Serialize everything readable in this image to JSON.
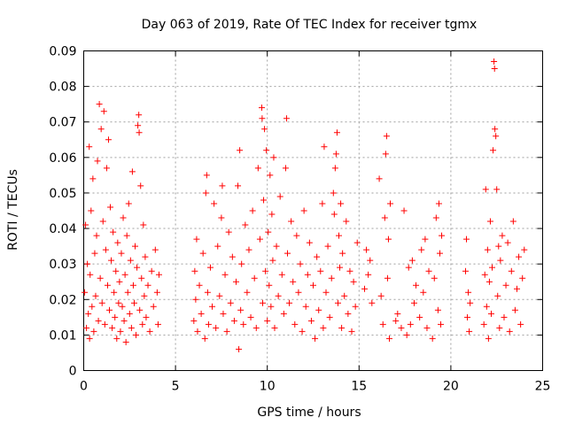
{
  "chart_data": {
    "type": "scatter",
    "title": "Day 063 of 2019, Rate Of TEC Index for receiver tgmx",
    "xlabel": "GPS time / hours",
    "ylabel": "ROTI / TECUs",
    "xlim": [
      0,
      25
    ],
    "ylim": [
      0,
      0.09
    ],
    "x_ticks": [
      0,
      5,
      10,
      15,
      20,
      25
    ],
    "x_tick_labels": [
      "0",
      "5",
      "10",
      "15",
      "20",
      "25"
    ],
    "y_ticks": [
      0,
      0.01,
      0.02,
      0.03,
      0.04,
      0.05,
      0.06,
      0.07,
      0.08,
      0.09
    ],
    "y_tick_labels": [
      "0",
      "0.01",
      "0.02",
      "0.03",
      "0.04",
      "0.05",
      "0.06",
      "0.07",
      "0.08",
      "0.09"
    ],
    "grid": true,
    "marker": "plus",
    "series_color": "#ff0000",
    "series": [
      {
        "points": [
          [
            0.05,
            0.022
          ],
          [
            0.1,
            0.041
          ],
          [
            0.15,
            0.012
          ],
          [
            0.2,
            0.03
          ],
          [
            0.25,
            0.016
          ],
          [
            0.3,
            0.063
          ],
          [
            0.32,
            0.009
          ],
          [
            0.35,
            0.027
          ],
          [
            0.4,
            0.045
          ],
          [
            0.45,
            0.018
          ],
          [
            0.5,
            0.054
          ],
          [
            0.55,
            0.011
          ],
          [
            0.6,
            0.033
          ],
          [
            0.65,
            0.021
          ],
          [
            0.7,
            0.038
          ],
          [
            0.75,
            0.059
          ],
          [
            0.8,
            0.014
          ],
          [
            0.85,
            0.075
          ],
          [
            0.9,
            0.026
          ],
          [
            0.95,
            0.068
          ],
          [
            1.0,
            0.019
          ],
          [
            1.05,
            0.042
          ],
          [
            1.1,
            0.073
          ],
          [
            1.15,
            0.013
          ],
          [
            1.2,
            0.034
          ],
          [
            1.25,
            0.057
          ],
          [
            1.3,
            0.024
          ],
          [
            1.35,
            0.065
          ],
          [
            1.4,
            0.017
          ],
          [
            1.45,
            0.046
          ],
          [
            1.5,
            0.031
          ],
          [
            1.55,
            0.012
          ],
          [
            1.6,
            0.039
          ],
          [
            1.65,
            0.022
          ],
          [
            1.7,
            0.015
          ],
          [
            1.75,
            0.028
          ],
          [
            1.8,
            0.009
          ],
          [
            1.85,
            0.036
          ],
          [
            1.9,
            0.019
          ],
          [
            1.95,
            0.025
          ],
          [
            2.0,
            0.011
          ],
          [
            2.05,
            0.033
          ],
          [
            2.1,
            0.018
          ],
          [
            2.15,
            0.043
          ],
          [
            2.2,
            0.014
          ],
          [
            2.25,
            0.027
          ],
          [
            2.3,
            0.008
          ],
          [
            2.35,
            0.038
          ],
          [
            2.4,
            0.022
          ],
          [
            2.45,
            0.047
          ],
          [
            2.5,
            0.016
          ],
          [
            2.55,
            0.031
          ],
          [
            2.6,
            0.012
          ],
          [
            2.65,
            0.056
          ],
          [
            2.7,
            0.024
          ],
          [
            2.75,
            0.019
          ],
          [
            2.8,
            0.035
          ],
          [
            2.85,
            0.01
          ],
          [
            2.9,
            0.029
          ],
          [
            2.95,
            0.069
          ],
          [
            3.0,
            0.072
          ],
          [
            3.02,
            0.067
          ],
          [
            3.05,
            0.017
          ],
          [
            3.1,
            0.052
          ],
          [
            3.15,
            0.026
          ],
          [
            3.2,
            0.013
          ],
          [
            3.25,
            0.041
          ],
          [
            3.3,
            0.021
          ],
          [
            3.35,
            0.032
          ],
          [
            3.4,
            0.015
          ],
          [
            3.5,
            0.024
          ],
          [
            3.6,
            0.011
          ],
          [
            3.7,
            0.028
          ],
          [
            3.8,
            0.018
          ],
          [
            3.9,
            0.034
          ],
          [
            4.0,
            0.022
          ],
          [
            4.05,
            0.013
          ],
          [
            4.1,
            0.027
          ],
          [
            6.0,
            0.014
          ],
          [
            6.05,
            0.028
          ],
          [
            6.1,
            0.02
          ],
          [
            6.15,
            0.037
          ],
          [
            6.2,
            0.011
          ],
          [
            6.3,
            0.024
          ],
          [
            6.4,
            0.016
          ],
          [
            6.5,
            0.033
          ],
          [
            6.6,
            0.009
          ],
          [
            6.65,
            0.05
          ],
          [
            6.7,
            0.055
          ],
          [
            6.75,
            0.022
          ],
          [
            6.8,
            0.013
          ],
          [
            6.9,
            0.029
          ],
          [
            7.0,
            0.018
          ],
          [
            7.1,
            0.047
          ],
          [
            7.2,
            0.012
          ],
          [
            7.3,
            0.035
          ],
          [
            7.4,
            0.021
          ],
          [
            7.5,
            0.043
          ],
          [
            7.55,
            0.052
          ],
          [
            7.6,
            0.016
          ],
          [
            7.7,
            0.027
          ],
          [
            7.8,
            0.011
          ],
          [
            7.9,
            0.039
          ],
          [
            8.0,
            0.019
          ],
          [
            8.1,
            0.032
          ],
          [
            8.2,
            0.014
          ],
          [
            8.3,
            0.025
          ],
          [
            8.4,
            0.052
          ],
          [
            8.45,
            0.006
          ],
          [
            8.5,
            0.062
          ],
          [
            8.55,
            0.017
          ],
          [
            8.6,
            0.03
          ],
          [
            8.7,
            0.013
          ],
          [
            8.8,
            0.041
          ],
          [
            8.9,
            0.022
          ],
          [
            9.0,
            0.034
          ],
          [
            9.1,
            0.015
          ],
          [
            9.2,
            0.045
          ],
          [
            9.3,
            0.026
          ],
          [
            9.4,
            0.012
          ],
          [
            9.5,
            0.057
          ],
          [
            9.6,
            0.037
          ],
          [
            9.7,
            0.074
          ],
          [
            9.72,
            0.071
          ],
          [
            9.75,
            0.019
          ],
          [
            9.8,
            0.048
          ],
          [
            9.85,
            0.068
          ],
          [
            9.9,
            0.028
          ],
          [
            9.95,
            0.062
          ],
          [
            10.0,
            0.014
          ],
          [
            10.05,
            0.039
          ],
          [
            10.1,
            0.024
          ],
          [
            10.15,
            0.055
          ],
          [
            10.2,
            0.018
          ],
          [
            10.25,
            0.044
          ],
          [
            10.3,
            0.031
          ],
          [
            10.35,
            0.06
          ],
          [
            10.4,
            0.012
          ],
          [
            10.5,
            0.035
          ],
          [
            10.6,
            0.021
          ],
          [
            10.7,
            0.049
          ],
          [
            10.8,
            0.027
          ],
          [
            10.9,
            0.016
          ],
          [
            11.0,
            0.057
          ],
          [
            11.05,
            0.071
          ],
          [
            11.1,
            0.033
          ],
          [
            11.2,
            0.019
          ],
          [
            11.3,
            0.042
          ],
          [
            11.4,
            0.025
          ],
          [
            11.5,
            0.013
          ],
          [
            11.6,
            0.038
          ],
          [
            11.7,
            0.022
          ],
          [
            11.8,
            0.03
          ],
          [
            11.9,
            0.011
          ],
          [
            12.0,
            0.045
          ],
          [
            12.1,
            0.018
          ],
          [
            12.2,
            0.027
          ],
          [
            12.3,
            0.036
          ],
          [
            12.4,
            0.014
          ],
          [
            12.5,
            0.024
          ],
          [
            12.6,
            0.009
          ],
          [
            12.7,
            0.032
          ],
          [
            12.8,
            0.017
          ],
          [
            12.9,
            0.028
          ],
          [
            13.0,
            0.047
          ],
          [
            13.05,
            0.012
          ],
          [
            13.1,
            0.063
          ],
          [
            13.2,
            0.022
          ],
          [
            13.3,
            0.035
          ],
          [
            13.4,
            0.015
          ],
          [
            13.5,
            0.026
          ],
          [
            13.6,
            0.05
          ],
          [
            13.65,
            0.044
          ],
          [
            13.7,
            0.057
          ],
          [
            13.75,
            0.061
          ],
          [
            13.8,
            0.067
          ],
          [
            13.85,
            0.019
          ],
          [
            13.9,
            0.038
          ],
          [
            13.95,
            0.029
          ],
          [
            14.0,
            0.047
          ],
          [
            14.05,
            0.012
          ],
          [
            14.1,
            0.033
          ],
          [
            14.2,
            0.021
          ],
          [
            14.3,
            0.042
          ],
          [
            14.4,
            0.016
          ],
          [
            14.5,
            0.028
          ],
          [
            14.6,
            0.011
          ],
          [
            14.7,
            0.025
          ],
          [
            14.8,
            0.018
          ],
          [
            14.9,
            0.036
          ],
          [
            15.3,
            0.023
          ],
          [
            15.4,
            0.034
          ],
          [
            15.5,
            0.027
          ],
          [
            15.6,
            0.031
          ],
          [
            15.7,
            0.019
          ],
          [
            16.1,
            0.054
          ],
          [
            16.2,
            0.021
          ],
          [
            16.3,
            0.013
          ],
          [
            16.4,
            0.043
          ],
          [
            16.45,
            0.061
          ],
          [
            16.5,
            0.066
          ],
          [
            16.55,
            0.026
          ],
          [
            16.6,
            0.037
          ],
          [
            16.65,
            0.009
          ],
          [
            16.7,
            0.047
          ],
          [
            17.0,
            0.014
          ],
          [
            17.1,
            0.016
          ],
          [
            17.3,
            0.012
          ],
          [
            17.45,
            0.045
          ],
          [
            17.6,
            0.01
          ],
          [
            17.7,
            0.029
          ],
          [
            17.8,
            0.013
          ],
          [
            17.9,
            0.031
          ],
          [
            18.0,
            0.019
          ],
          [
            18.1,
            0.024
          ],
          [
            18.3,
            0.015
          ],
          [
            18.4,
            0.034
          ],
          [
            18.5,
            0.022
          ],
          [
            18.6,
            0.037
          ],
          [
            18.7,
            0.012
          ],
          [
            18.8,
            0.028
          ],
          [
            19.0,
            0.009
          ],
          [
            19.1,
            0.026
          ],
          [
            19.2,
            0.043
          ],
          [
            19.3,
            0.017
          ],
          [
            19.35,
            0.047
          ],
          [
            19.4,
            0.033
          ],
          [
            19.45,
            0.013
          ],
          [
            19.5,
            0.038
          ],
          [
            20.8,
            0.028
          ],
          [
            20.85,
            0.037
          ],
          [
            20.9,
            0.015
          ],
          [
            20.95,
            0.022
          ],
          [
            21.0,
            0.011
          ],
          [
            21.05,
            0.019
          ],
          [
            21.8,
            0.013
          ],
          [
            21.85,
            0.027
          ],
          [
            21.9,
            0.051
          ],
          [
            21.95,
            0.018
          ],
          [
            22.0,
            0.034
          ],
          [
            22.05,
            0.009
          ],
          [
            22.1,
            0.025
          ],
          [
            22.15,
            0.042
          ],
          [
            22.2,
            0.016
          ],
          [
            22.25,
            0.029
          ],
          [
            22.3,
            0.062
          ],
          [
            22.35,
            0.087
          ],
          [
            22.38,
            0.085
          ],
          [
            22.4,
            0.068
          ],
          [
            22.45,
            0.066
          ],
          [
            22.5,
            0.051
          ],
          [
            22.55,
            0.021
          ],
          [
            22.6,
            0.035
          ],
          [
            22.65,
            0.012
          ],
          [
            22.7,
            0.031
          ],
          [
            22.8,
            0.038
          ],
          [
            22.9,
            0.015
          ],
          [
            23.0,
            0.024
          ],
          [
            23.1,
            0.036
          ],
          [
            23.2,
            0.011
          ],
          [
            23.3,
            0.028
          ],
          [
            23.4,
            0.042
          ],
          [
            23.5,
            0.017
          ],
          [
            23.6,
            0.023
          ],
          [
            23.7,
            0.032
          ],
          [
            23.8,
            0.013
          ],
          [
            23.9,
            0.026
          ],
          [
            24.0,
            0.034
          ]
        ]
      }
    ]
  }
}
